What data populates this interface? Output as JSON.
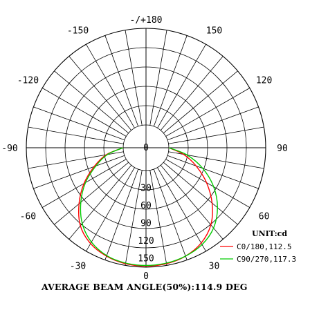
{
  "chart_data": {
    "type": "polar",
    "unit_label": "UNIT:cd",
    "footer": "AVERAGE BEAM ANGLE(50%):114.9 DEG",
    "angle_labels": [
      {
        "deg": 180,
        "text": "-/+180"
      },
      {
        "deg": 150,
        "text": "150"
      },
      {
        "deg": 120,
        "text": "120"
      },
      {
        "deg": 90,
        "text": "90"
      },
      {
        "deg": 60,
        "text": "60"
      },
      {
        "deg": 30,
        "text": "30"
      },
      {
        "deg": -30,
        "text": "-30"
      },
      {
        "deg": -60,
        "text": "-60"
      },
      {
        "deg": -90,
        "text": "-90"
      },
      {
        "deg": -120,
        "text": "-120"
      },
      {
        "deg": -150,
        "text": "-150"
      }
    ],
    "radial_ticks": [
      0,
      30,
      60,
      90,
      120,
      150
    ],
    "radial_tick_labels": [
      "0",
      "30",
      "60",
      "90",
      "120",
      "150"
    ],
    "radial_max": 165,
    "series": [
      {
        "name": "C0/180,112.5",
        "color": "#ff0000",
        "angles": [
          -90,
          -80,
          -70,
          -60,
          -50,
          -40,
          -30,
          -20,
          -10,
          0,
          10,
          20,
          30,
          40,
          50,
          60,
          70,
          80,
          90
        ],
        "values": [
          0,
          30,
          55,
          83,
          110,
          135,
          150,
          158,
          162,
          163,
          162,
          158,
          149,
          133,
          108,
          80,
          52,
          26,
          0
        ]
      },
      {
        "name": "C90/270,117.3",
        "color": "#00cc00",
        "angles": [
          -90,
          -80,
          -70,
          -60,
          -50,
          -40,
          -30,
          -20,
          -10,
          0,
          10,
          20,
          30,
          40,
          50,
          60,
          70,
          80,
          90
        ],
        "values": [
          0,
          28,
          52,
          80,
          106,
          130,
          147,
          157,
          161,
          162,
          161,
          158,
          152,
          140,
          120,
          94,
          64,
          32,
          0
        ]
      }
    ]
  }
}
